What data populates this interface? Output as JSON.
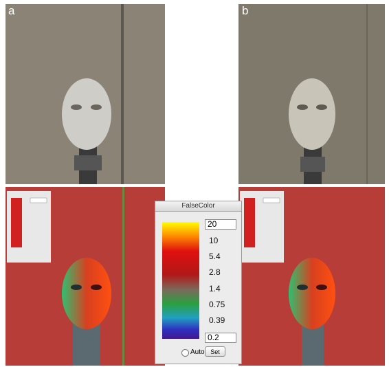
{
  "panels": {
    "top_left_label": "a",
    "top_right_label": "b"
  },
  "dialog": {
    "title": "FalseColor",
    "max_field": 20,
    "scale_labels": [
      10,
      5.4,
      2.8,
      1.4,
      0.75,
      0.39
    ],
    "min_field": 0.2,
    "auto_label": "Auto",
    "set_button": "Set"
  }
}
